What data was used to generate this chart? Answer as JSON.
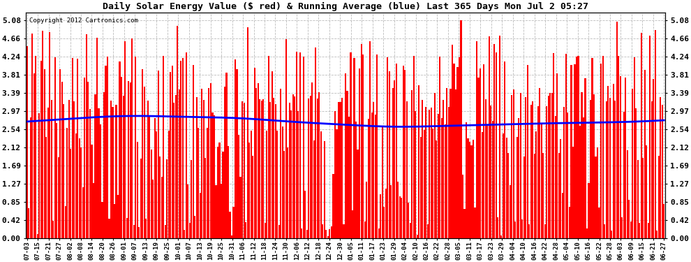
{
  "title": "Daily Solar Energy Value ($ red) & Running Average (blue) Last 365 Days Mon Jul 2 05:27",
  "copyright": "Copyright 2012 Cartronics.com",
  "bar_color": "#ff0000",
  "line_color": "#0000ff",
  "background_color": "#ffffff",
  "grid_color": "#aaaaaa",
  "yticks": [
    0.0,
    0.42,
    0.85,
    1.27,
    1.69,
    2.12,
    2.54,
    2.97,
    3.39,
    3.81,
    4.24,
    4.66,
    5.08
  ],
  "ylim": [
    0.0,
    5.25
  ],
  "n_days": 365,
  "seed": 12345,
  "x_tick_labels": [
    "07-03",
    "07-15",
    "07-21",
    "07-27",
    "08-02",
    "08-08",
    "08-14",
    "08-20",
    "08-26",
    "09-01",
    "09-07",
    "09-13",
    "09-19",
    "09-25",
    "10-01",
    "10-07",
    "10-13",
    "10-19",
    "10-25",
    "10-31",
    "11-06",
    "11-12",
    "11-18",
    "11-24",
    "11-30",
    "12-06",
    "12-12",
    "12-18",
    "12-24",
    "12-30",
    "01-05",
    "01-11",
    "01-17",
    "01-23",
    "01-29",
    "02-04",
    "02-10",
    "02-16",
    "02-22",
    "02-28",
    "03-05",
    "03-11",
    "03-17",
    "03-23",
    "03-29",
    "04-04",
    "04-10",
    "04-16",
    "04-22",
    "04-28",
    "05-04",
    "05-10",
    "05-16",
    "05-22",
    "05-28",
    "06-03",
    "06-09",
    "06-15",
    "06-21",
    "06-27"
  ],
  "avg_control_points": [
    [
      0,
      2.72
    ],
    [
      30,
      2.8
    ],
    [
      60,
      2.85
    ],
    [
      90,
      2.83
    ],
    [
      120,
      2.8
    ],
    [
      150,
      2.72
    ],
    [
      180,
      2.65
    ],
    [
      210,
      2.6
    ],
    [
      240,
      2.62
    ],
    [
      270,
      2.65
    ],
    [
      300,
      2.68
    ],
    [
      330,
      2.7
    ],
    [
      364,
      2.75
    ]
  ]
}
